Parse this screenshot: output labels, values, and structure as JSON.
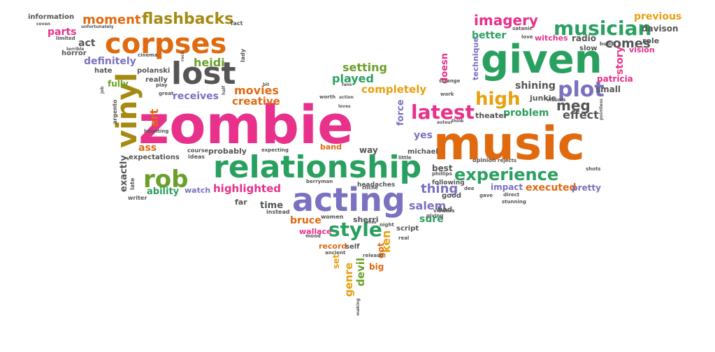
{
  "cloud": {
    "words": [
      {
        "text": "zombie",
        "color": "#e8318a"
      },
      {
        "text": "music",
        "color": "#e06a10"
      },
      {
        "text": "given",
        "color": "#2aa060"
      },
      {
        "text": "relationship",
        "color": "#2aa060"
      },
      {
        "text": "acting",
        "color": "#7a72c0"
      },
      {
        "text": "corpses",
        "color": "#e06a10"
      },
      {
        "text": "lost",
        "color": "#555555"
      },
      {
        "text": "vinyl",
        "color": "#a58a12"
      },
      {
        "text": "rob",
        "color": "#6aa02a"
      },
      {
        "text": "experience",
        "color": "#2aa060"
      },
      {
        "text": "musician",
        "color": "#2aa060"
      },
      {
        "text": "latest",
        "color": "#e8318a"
      },
      {
        "text": "style",
        "color": "#2aa060"
      },
      {
        "text": "plot",
        "color": "#7a72c0"
      },
      {
        "text": "high",
        "color": "#e8a010"
      },
      {
        "text": "flashbacks",
        "color": "#a58a12"
      },
      {
        "text": "moment",
        "color": "#e06a10"
      },
      {
        "text": "imagery",
        "color": "#e8318a"
      },
      {
        "text": "thing",
        "color": "#7a72c0"
      },
      {
        "text": "salem",
        "color": "#7a72c0"
      },
      {
        "text": "movies",
        "color": "#e06a10"
      },
      {
        "text": "heidi",
        "color": "#6aa02a"
      },
      {
        "text": "meg",
        "color": "#555555"
      },
      {
        "text": "comes",
        "color": "#555555"
      },
      {
        "text": "highlighted",
        "color": "#e8318a"
      },
      {
        "text": "executed",
        "color": "#e06a10"
      },
      {
        "text": "setting",
        "color": "#6aa02a"
      },
      {
        "text": "played",
        "color": "#2aa060"
      },
      {
        "text": "completely",
        "color": "#e8a010"
      },
      {
        "text": "creative",
        "color": "#e06a10"
      },
      {
        "text": "receives",
        "color": "#7a72c0"
      },
      {
        "text": "definitely",
        "color": "#7a72c0"
      },
      {
        "text": "parts",
        "color": "#e8318a"
      },
      {
        "text": "act",
        "color": "#555555"
      },
      {
        "text": "art",
        "color": "#e06a10"
      },
      {
        "text": "ass",
        "color": "#e06a10"
      },
      {
        "text": "exactly",
        "color": "#555555"
      },
      {
        "text": "ability",
        "color": "#2aa060"
      },
      {
        "text": "watch",
        "color": "#7a72c0"
      },
      {
        "text": "time",
        "color": "#555555"
      },
      {
        "text": "far",
        "color": "#555555"
      },
      {
        "text": "sure",
        "color": "#2aa060"
      },
      {
        "text": "yes",
        "color": "#7a72c0"
      },
      {
        "text": "best",
        "color": "#555555"
      },
      {
        "text": "problem",
        "color": "#2aa060"
      },
      {
        "text": "effect",
        "color": "#555555"
      },
      {
        "text": "shining",
        "color": "#555555"
      },
      {
        "text": "better",
        "color": "#2aa060"
      },
      {
        "text": "previous",
        "color": "#e8a010"
      },
      {
        "text": "davison",
        "color": "#555555"
      },
      {
        "text": "story",
        "color": "#e8318a"
      },
      {
        "text": "patricia",
        "color": "#e8318a"
      },
      {
        "text": "small",
        "color": "#555555"
      },
      {
        "text": "radio",
        "color": "#555555"
      },
      {
        "text": "witches",
        "color": "#e8318a"
      },
      {
        "text": "role",
        "color": "#555555"
      },
      {
        "text": "vision",
        "color": "#e8318a"
      },
      {
        "text": "slow",
        "color": "#555555"
      },
      {
        "text": "pretty",
        "color": "#7a72c0"
      },
      {
        "text": "impact",
        "color": "#7a72c0"
      },
      {
        "text": "theater",
        "color": "#555555"
      },
      {
        "text": "junkie",
        "color": "#555555"
      },
      {
        "text": "technique",
        "color": "#7a72c0"
      },
      {
        "text": "doesn",
        "color": "#e8318a"
      },
      {
        "text": "force",
        "color": "#7a72c0"
      },
      {
        "text": "genre",
        "color": "#e8a010"
      },
      {
        "text": "devil",
        "color": "#6aa02a"
      },
      {
        "text": "ken",
        "color": "#e8a010"
      },
      {
        "text": "bruce",
        "color": "#e06a10"
      },
      {
        "text": "wallace",
        "color": "#e8318a"
      },
      {
        "text": "sherri",
        "color": "#555555"
      },
      {
        "text": "record",
        "color": "#e06a10"
      },
      {
        "text": "self",
        "color": "#555555"
      },
      {
        "text": "big",
        "color": "#e06a10"
      },
      {
        "text": "got",
        "color": "#e06a10"
      },
      {
        "text": "set",
        "color": "#e8a010"
      },
      {
        "text": "script",
        "color": "#555555"
      },
      {
        "text": "bad",
        "color": "#555555"
      },
      {
        "text": "good",
        "color": "#555555"
      },
      {
        "text": "band",
        "color": "#e06a10"
      },
      {
        "text": "way",
        "color": "#555555"
      },
      {
        "text": "michael",
        "color": "#555555"
      },
      {
        "text": "probably",
        "color": "#555555"
      },
      {
        "text": "course",
        "color": "#555555"
      },
      {
        "text": "information",
        "color": "#555555"
      },
      {
        "text": "horror",
        "color": "#555555"
      },
      {
        "text": "hate",
        "color": "#555555"
      },
      {
        "text": "polanski",
        "color": "#555555"
      },
      {
        "text": "really",
        "color": "#555555"
      },
      {
        "text": "fully",
        "color": "#6aa02a"
      },
      {
        "text": "expectations",
        "color": "#555555"
      },
      {
        "text": "writer",
        "color": "#555555"
      },
      {
        "text": "late",
        "color": "#555555"
      },
      {
        "text": "following",
        "color": "#555555"
      },
      {
        "text": "opinion",
        "color": "#555555"
      },
      {
        "text": "headaches",
        "color": "#555555"
      },
      {
        "text": "women",
        "color": "#555555"
      },
      {
        "text": "instead",
        "color": "#555555"
      },
      {
        "text": "fact",
        "color": "#555555"
      },
      {
        "text": "cinema",
        "color": "#555555"
      },
      {
        "text": "lady",
        "color": "#555555"
      },
      {
        "text": "argento",
        "color": "#555555"
      },
      {
        "text": "play",
        "color": "#555555"
      },
      {
        "text": "great",
        "color": "#555555"
      },
      {
        "text": "haunting",
        "color": "#555555"
      },
      {
        "text": "ideas",
        "color": "#555555"
      },
      {
        "text": "expecting",
        "color": "#555555"
      },
      {
        "text": "worth",
        "color": "#555555"
      },
      {
        "text": "little",
        "color": "#555555"
      },
      {
        "text": "phillips",
        "color": "#555555"
      },
      {
        "text": "viewers",
        "color": "#555555"
      },
      {
        "text": "cliche",
        "color": "#555555"
      },
      {
        "text": "berryman",
        "color": "#555555"
      },
      {
        "text": "strange",
        "color": "#555555"
      },
      {
        "text": "work",
        "color": "#555555"
      },
      {
        "text": "visuals",
        "color": "#555555"
      },
      {
        "text": "rejects",
        "color": "#555555"
      },
      {
        "text": "direct",
        "color": "#555555"
      },
      {
        "text": "stunning",
        "color": "#555555"
      },
      {
        "text": "gave",
        "color": "#555555"
      },
      {
        "text": "shots",
        "color": "#555555"
      },
      {
        "text": "satanic",
        "color": "#555555"
      },
      {
        "text": "love",
        "color": "#555555"
      },
      {
        "text": "build",
        "color": "#555555"
      },
      {
        "text": "making",
        "color": "#555555"
      },
      {
        "text": "mood",
        "color": "#555555"
      },
      {
        "text": "real",
        "color": "#555555"
      },
      {
        "text": "ancient",
        "color": "#555555"
      },
      {
        "text": "release",
        "color": "#555555"
      },
      {
        "text": "night",
        "color": "#555555"
      },
      {
        "text": "miss",
        "color": "#555555"
      },
      {
        "text": "giving",
        "color": "#555555"
      },
      {
        "text": "dee",
        "color": "#555555"
      },
      {
        "text": "fans",
        "color": "#555555"
      },
      {
        "text": "action",
        "color": "#555555"
      },
      {
        "text": "loves",
        "color": "#555555"
      },
      {
        "text": "half",
        "color": "#555555"
      },
      {
        "text": "bit",
        "color": "#555555"
      },
      {
        "text": "pointless",
        "color": "#555555"
      },
      {
        "text": "limited",
        "color": "#555555"
      },
      {
        "text": "terrible",
        "color": "#555555"
      },
      {
        "text": "coven",
        "color": "#555555"
      },
      {
        "text": "unfortunately",
        "color": "#555555"
      },
      {
        "text": "rock",
        "color": "#555555"
      },
      {
        "text": "job",
        "color": "#555555"
      },
      {
        "text": "auteur",
        "color": "#555555"
      },
      {
        "text": "think",
        "color": "#555555"
      }
    ]
  }
}
